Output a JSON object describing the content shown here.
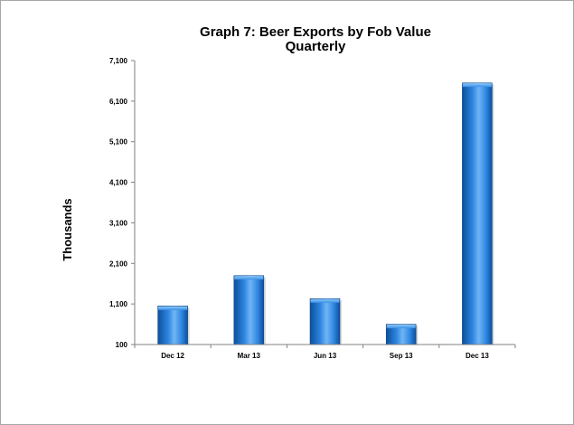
{
  "chart_data": {
    "type": "bar",
    "title": "Graph 7: Beer Exports by Fob Value",
    "subtitle": "Quarterly",
    "xlabel": "",
    "ylabel": "Thousands",
    "categories": [
      "Dec 12",
      "Mar 13",
      "Jun 13",
      "Sep 13",
      "Dec 13"
    ],
    "values": [
      1050,
      1800,
      1230,
      600,
      6550
    ],
    "ylim": [
      100,
      7100
    ],
    "yticks": [
      100,
      1100,
      2100,
      3100,
      4100,
      5100,
      6100,
      7100
    ],
    "ytick_labels": [
      "100",
      "1,100",
      "2,100",
      "3,100",
      "4,100",
      "5,100",
      "6,100",
      "7,100"
    ],
    "grid": false,
    "legend": "none",
    "colors": {
      "bar_dark": "#0b4f9c",
      "bar_mid": "#2f86e0",
      "bar_light": "#6fb6f6",
      "axis": "#808080"
    }
  }
}
